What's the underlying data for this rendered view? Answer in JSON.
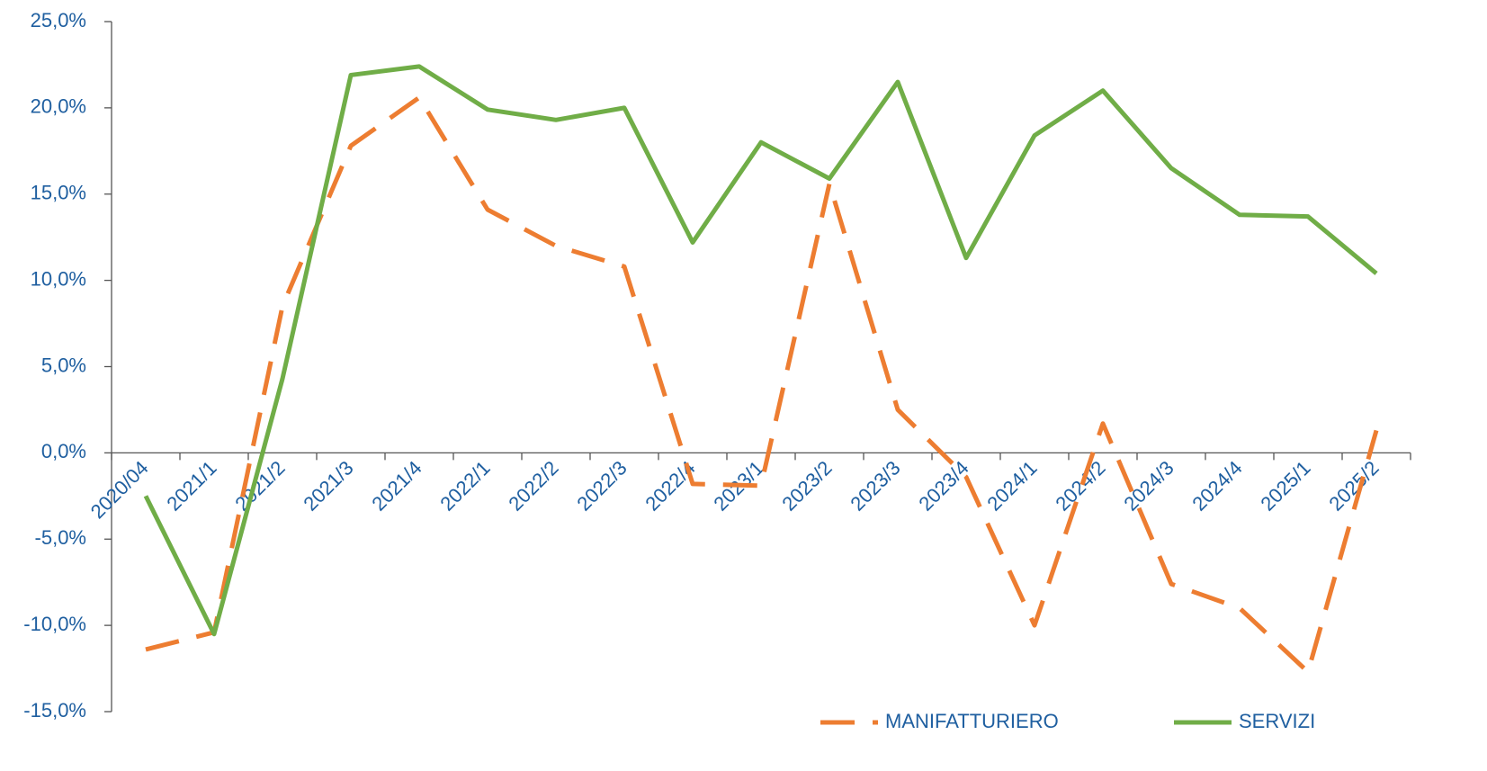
{
  "chart_data": {
    "type": "line",
    "categories": [
      "2020/04",
      "2021/1",
      "2021/2",
      "2021/3",
      "2021/4",
      "2022/1",
      "2022/2",
      "2022/3",
      "2022/4",
      "2023/1",
      "2023/2",
      "2023/3",
      "2023/4",
      "2024/1",
      "2024/2",
      "2024/3",
      "2024/4",
      "2025/1",
      "2025/2"
    ],
    "series": [
      {
        "name": "MANIFATTURIERO",
        "color": "#ed7d31",
        "dashed": true,
        "values": [
          -11.4,
          -10.4,
          8.5,
          17.8,
          20.6,
          14.1,
          12.0,
          10.8,
          -1.8,
          -1.9,
          15.6,
          2.5,
          -1.4,
          -10.0,
          1.7,
          -7.6,
          -9.0,
          -12.7,
          1.3
        ]
      },
      {
        "name": "SERVIZI",
        "color": "#70ad47",
        "dashed": false,
        "values": [
          -2.5,
          -10.5,
          4.3,
          21.9,
          22.4,
          19.9,
          19.3,
          20.0,
          12.2,
          18.0,
          15.9,
          21.5,
          11.3,
          18.4,
          21.0,
          16.5,
          13.8,
          13.7,
          10.4
        ]
      }
    ],
    "ylim": [
      -15,
      25
    ],
    "yticks": [
      {
        "value": -15,
        "label": "-15,0%"
      },
      {
        "value": -10,
        "label": "-10,0%"
      },
      {
        "value": -5,
        "label": "-5,0%"
      },
      {
        "value": 0,
        "label": "0,0%"
      },
      {
        "value": 5,
        "label": "5,0%"
      },
      {
        "value": 10,
        "label": "10,0%"
      },
      {
        "value": 15,
        "label": "15,0%"
      },
      {
        "value": 20,
        "label": "20,0%"
      },
      {
        "value": 25,
        "label": "25,0%"
      }
    ],
    "grid": false,
    "legend": "bottom-right"
  }
}
